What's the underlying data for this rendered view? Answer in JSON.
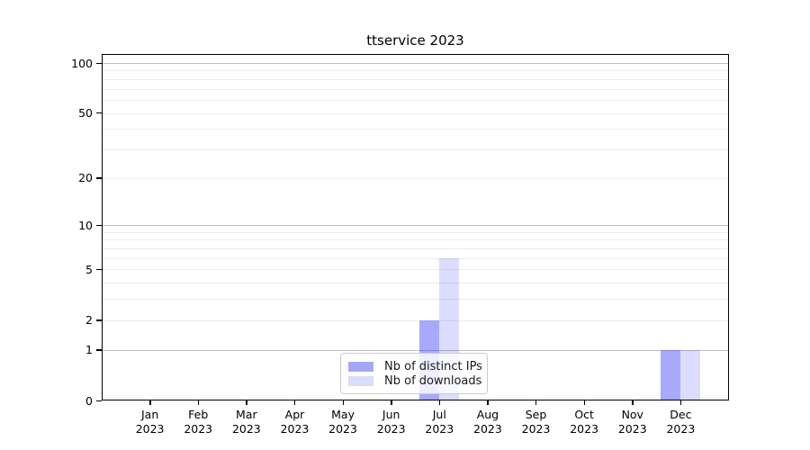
{
  "chart_data": {
    "type": "bar",
    "title": "ttservice 2023",
    "xlabel": "",
    "ylabel": "",
    "year_label": "2023",
    "categories": [
      "Jan",
      "Feb",
      "Mar",
      "Apr",
      "May",
      "Jun",
      "Jul",
      "Aug",
      "Sep",
      "Oct",
      "Nov",
      "Dec"
    ],
    "series": [
      {
        "name": "Nb of distinct IPs",
        "color_hex": "#a6a6f7",
        "color_rgba": "rgba(10, 10, 245, 0.35)",
        "values": [
          0,
          0,
          0,
          0,
          0,
          0,
          2,
          0,
          0,
          0,
          0,
          1
        ]
      },
      {
        "name": "Nb of downloads",
        "color_hex": "#dbdbfa",
        "color_rgba": "rgba(10, 10, 245, 0.14)",
        "values": [
          0,
          0,
          0,
          0,
          0,
          0,
          6,
          0,
          0,
          0,
          0,
          1
        ]
      }
    ],
    "y_scale": "log1p",
    "y_ticks": [
      0,
      1,
      2,
      5,
      10,
      20,
      50,
      100
    ],
    "y_major_gridlines": [
      1,
      10,
      100
    ],
    "y_minor_gridlines": [
      2,
      3,
      4,
      5,
      6,
      7,
      8,
      9,
      20,
      30,
      40,
      50,
      60,
      70,
      80,
      90
    ],
    "ylim": [
      0,
      113
    ],
    "grid": "horizontal-only",
    "legend_position": "lower-center"
  },
  "colors": {
    "background": "#ffffff",
    "axis": "#000000",
    "grid_major": "#c2c2c2",
    "grid_minor": "#ececec",
    "legend_border": "#cccccc",
    "tick_label": "#000000"
  }
}
